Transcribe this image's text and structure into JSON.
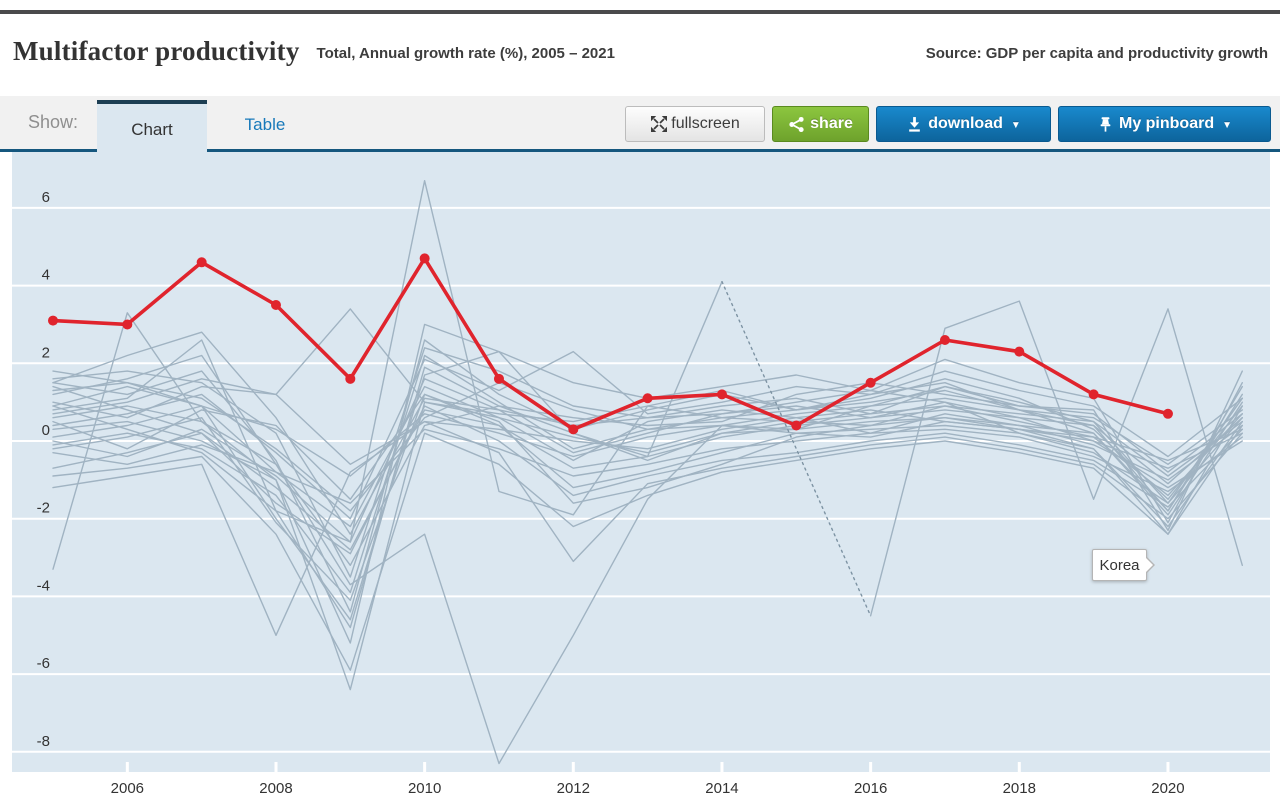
{
  "header": {
    "title": "Multifactor productivity",
    "subtitle": "Total, Annual growth rate (%), 2005 – 2021",
    "source": "Source: GDP per capita and productivity growth"
  },
  "toolbar": {
    "show_label": "Show:",
    "tabs": {
      "chart": "Chart",
      "table": "Table"
    },
    "buttons": {
      "fullscreen": "fullscreen",
      "share": "share",
      "download": "download",
      "pinboard": "My pinboard",
      "caret": "▼"
    }
  },
  "chart_data": {
    "type": "line",
    "title": "Multifactor productivity",
    "unit": "Annual growth rate (%)",
    "ylim": [
      -8.6,
      7.6
    ],
    "grid": "horizontal-white",
    "y_ticks": [
      6,
      4,
      2,
      0,
      -2,
      -4,
      -6,
      -8
    ],
    "x_tick_years": [
      2006,
      2008,
      2010,
      2012,
      2014,
      2016,
      2018,
      2020
    ],
    "years": [
      2005,
      2006,
      2007,
      2008,
      2009,
      2010,
      2011,
      2012,
      2013,
      2014,
      2015,
      2016,
      2017,
      2018,
      2019,
      2020,
      2021
    ],
    "tooltip": {
      "label": "Korea",
      "year": 2020,
      "value": 0.7
    },
    "colors": {
      "accent_red": "#e0242d",
      "plot_bg": "#dbe7f0",
      "gridline": "#ffffff",
      "gray_line": "#a0b3c2",
      "dashed_line": "#7d93a3",
      "axis_text": "#333333"
    },
    "series": {
      "highlight": {
        "name": "Korea",
        "values": [
          3.1,
          3.0,
          4.6,
          3.5,
          1.6,
          4.7,
          1.6,
          0.3,
          1.1,
          1.2,
          0.4,
          1.5,
          2.6,
          2.3,
          1.2,
          0.7,
          null
        ]
      },
      "background": [
        {
          "values": [
            1.6,
            1.8,
            1.5,
            0.2,
            -3.5,
            2.4,
            1.8,
            0.9,
            0.6,
            0.9,
            1.1,
            0.7,
            1.4,
            0.9,
            0.8,
            -2.3,
            1.8
          ]
        },
        {
          "values": [
            1.5,
            1.2,
            1.8,
            -0.5,
            -4.4,
            2.6,
            1.2,
            0.3,
            0.8,
            1.2,
            0.8,
            1.1,
            1.6,
            1.1,
            0.3,
            -1.5,
            0.9
          ]
        },
        {
          "values": [
            1.5,
            2.2,
            2.8,
            0.6,
            -2.4,
            1.1,
            0.8,
            -0.3,
            0.2,
            0.7,
            1.0,
            1.3,
            1.0,
            0.2,
            -0.2,
            -2.4,
            0.9
          ]
        },
        {
          "values": [
            1.4,
            0.8,
            0.2,
            -1.2,
            -2.8,
            0.8,
            0.4,
            -0.7,
            -0.4,
            0.1,
            0.4,
            0.6,
            0.8,
            0.6,
            0.0,
            -1.2,
            0.0
          ]
        },
        {
          "values": [
            1.3,
            1.5,
            1.1,
            -0.2,
            -1.8,
            0.6,
            1.5,
            0.8,
            0.3,
            0.4,
            0.7,
            0.9,
            1.1,
            0.8,
            0.6,
            -0.6,
            0.8
          ]
        },
        {
          "values": [
            1.0,
            0.6,
            1.4,
            1.2,
            3.4,
            1.0,
            0.7,
            0.5,
            0.9,
            0.6,
            0.5,
            0.4,
            0.9,
            0.7,
            0.5,
            -0.9,
            0.5
          ]
        },
        {
          "values": [
            0.9,
            1.4,
            0.9,
            -0.8,
            -2.2,
            1.4,
            0.6,
            -0.5,
            0.5,
            0.8,
            0.6,
            0.2,
            0.7,
            0.4,
            0.2,
            -1.8,
            1.2
          ]
        },
        {
          "values": [
            0.9,
            0.3,
            -0.3,
            -1.8,
            -4.8,
            1.9,
            0.9,
            0.6,
            0.4,
            0.5,
            1.2,
            1.5,
            1.2,
            0.9,
            0.7,
            -0.8,
            0.7
          ]
        },
        {
          "values": [
            0.7,
            1.0,
            1.6,
            1.2,
            -0.6,
            0.5,
            0.3,
            0.0,
            -0.2,
            0.3,
            0.6,
            0.8,
            0.5,
            0.3,
            0.1,
            -0.5,
            0.3
          ]
        },
        {
          "values": [
            0.6,
            0.9,
            0.5,
            -0.6,
            -3.2,
            0.4,
            0.9,
            0.2,
            -0.5,
            0.2,
            0.3,
            0.5,
            0.6,
            0.4,
            -0.1,
            -1.0,
            0.4
          ]
        },
        {
          "values": [
            0.5,
            -0.2,
            0.8,
            0.4,
            -1.5,
            1.2,
            0.4,
            -1.2,
            -0.8,
            -0.3,
            0.2,
            0.3,
            0.4,
            0.2,
            -0.3,
            -1.6,
            0.6
          ]
        },
        {
          "values": [
            0.4,
            0.7,
            1.2,
            -0.3,
            -2.0,
            2.1,
            1.3,
            2.3,
            0.7,
            1.0,
            1.4,
            1.2,
            1.8,
            1.3,
            0.9,
            -0.4,
            1.1
          ]
        },
        {
          "values": [
            0.3,
            0.5,
            0.0,
            -1.0,
            -5.2,
            3.0,
            2.3,
            1.5,
            1.1,
            1.4,
            1.7,
            1.3,
            2.1,
            1.5,
            1.1,
            -2.1,
            1.5
          ]
        },
        {
          "values": [
            0.1,
            0.4,
            0.9,
            0.3,
            -0.9,
            0.7,
            0.2,
            -0.4,
            0.1,
            0.4,
            0.2,
            0.1,
            0.5,
            0.3,
            0.0,
            -0.7,
            0.2
          ]
        },
        {
          "values": [
            0.0,
            -0.4,
            0.3,
            -0.9,
            -2.6,
            1.6,
            0.8,
            0.4,
            0.6,
            0.7,
            0.9,
            0.6,
            1.0,
            0.6,
            0.4,
            -1.1,
            0.6
          ]
        },
        {
          "values": [
            -0.1,
            0.2,
            -0.2,
            -1.4,
            -3.9,
            2.2,
            1.0,
            -0.2,
            0.3,
            0.6,
            0.8,
            1.0,
            1.3,
            0.8,
            0.2,
            -1.9,
            1.0
          ]
        },
        {
          "values": [
            -0.2,
            0.1,
            0.6,
            -2.1,
            -4.1,
            1.2,
            0.5,
            -1.6,
            -1.2,
            -0.6,
            0.1,
            0.4,
            0.6,
            0.3,
            -0.2,
            -2.2,
            0.5
          ]
        },
        {
          "values": [
            -0.3,
            -0.6,
            -0.1,
            -0.8,
            -1.6,
            0.3,
            -0.2,
            -0.9,
            -0.6,
            -0.2,
            0.0,
            0.2,
            0.3,
            0.1,
            -0.4,
            -1.3,
            0.1
          ]
        },
        {
          "values": [
            -0.7,
            -0.3,
            0.2,
            -1.6,
            -2.9,
            0.9,
            0.0,
            -1.4,
            -0.9,
            -0.5,
            -0.3,
            0.0,
            0.2,
            -0.1,
            -0.5,
            -1.7,
            0.3
          ]
        },
        {
          "values": [
            -0.9,
            -0.7,
            -0.4,
            -2.4,
            -5.9,
            0.2,
            -0.6,
            -2.2,
            -1.4,
            -0.8,
            -0.5,
            -0.2,
            0.0,
            -0.3,
            -0.7,
            -2.4,
            0.4
          ]
        },
        {
          "values": [
            -1.2,
            -0.9,
            -0.6,
            -5.0,
            -0.8,
            0.5,
            -0.3,
            -3.1,
            -1.1,
            -0.7,
            -0.4,
            -0.1,
            0.1,
            -0.2,
            -0.6,
            -2.0,
            0.2
          ]
        },
        {
          "values": [
            -3.3,
            3.3,
            0.5,
            -1.0,
            -6.4,
            1.0,
            0.6,
            0.1,
            -0.3,
            0.2,
            0.5,
            0.7,
            0.9,
            0.5,
            0.1,
            -1.4,
            0.7
          ]
        },
        {
          "values": [
            1.2,
            1.6,
            2.2,
            -0.6,
            -3.7,
            -2.4,
            -8.3,
            -5.0,
            -1.5,
            0.4,
            0.3,
            0.9,
            1.4,
            1.0,
            0.5,
            -1.6,
            1.1
          ]
        },
        {
          "values": [
            0.8,
            1.1,
            2.6,
            -1.8,
            -2.6,
            6.7,
            -1.3,
            -1.9,
            0.9,
            1.3,
            0.8,
            1.2,
            1.5,
            0.8,
            0.4,
            -1.8,
            1.4
          ]
        },
        {
          "values": [
            1.8,
            1.5,
            0.9,
            -2.0,
            -4.6,
            1.7,
            2.3,
            0.2,
            -0.4,
            4.1,
            -0.2,
            -4.5,
            2.9,
            3.6,
            -1.5,
            3.4,
            -3.2
          ],
          "dashed_between": [
            2014,
            2016
          ]
        }
      ]
    }
  }
}
